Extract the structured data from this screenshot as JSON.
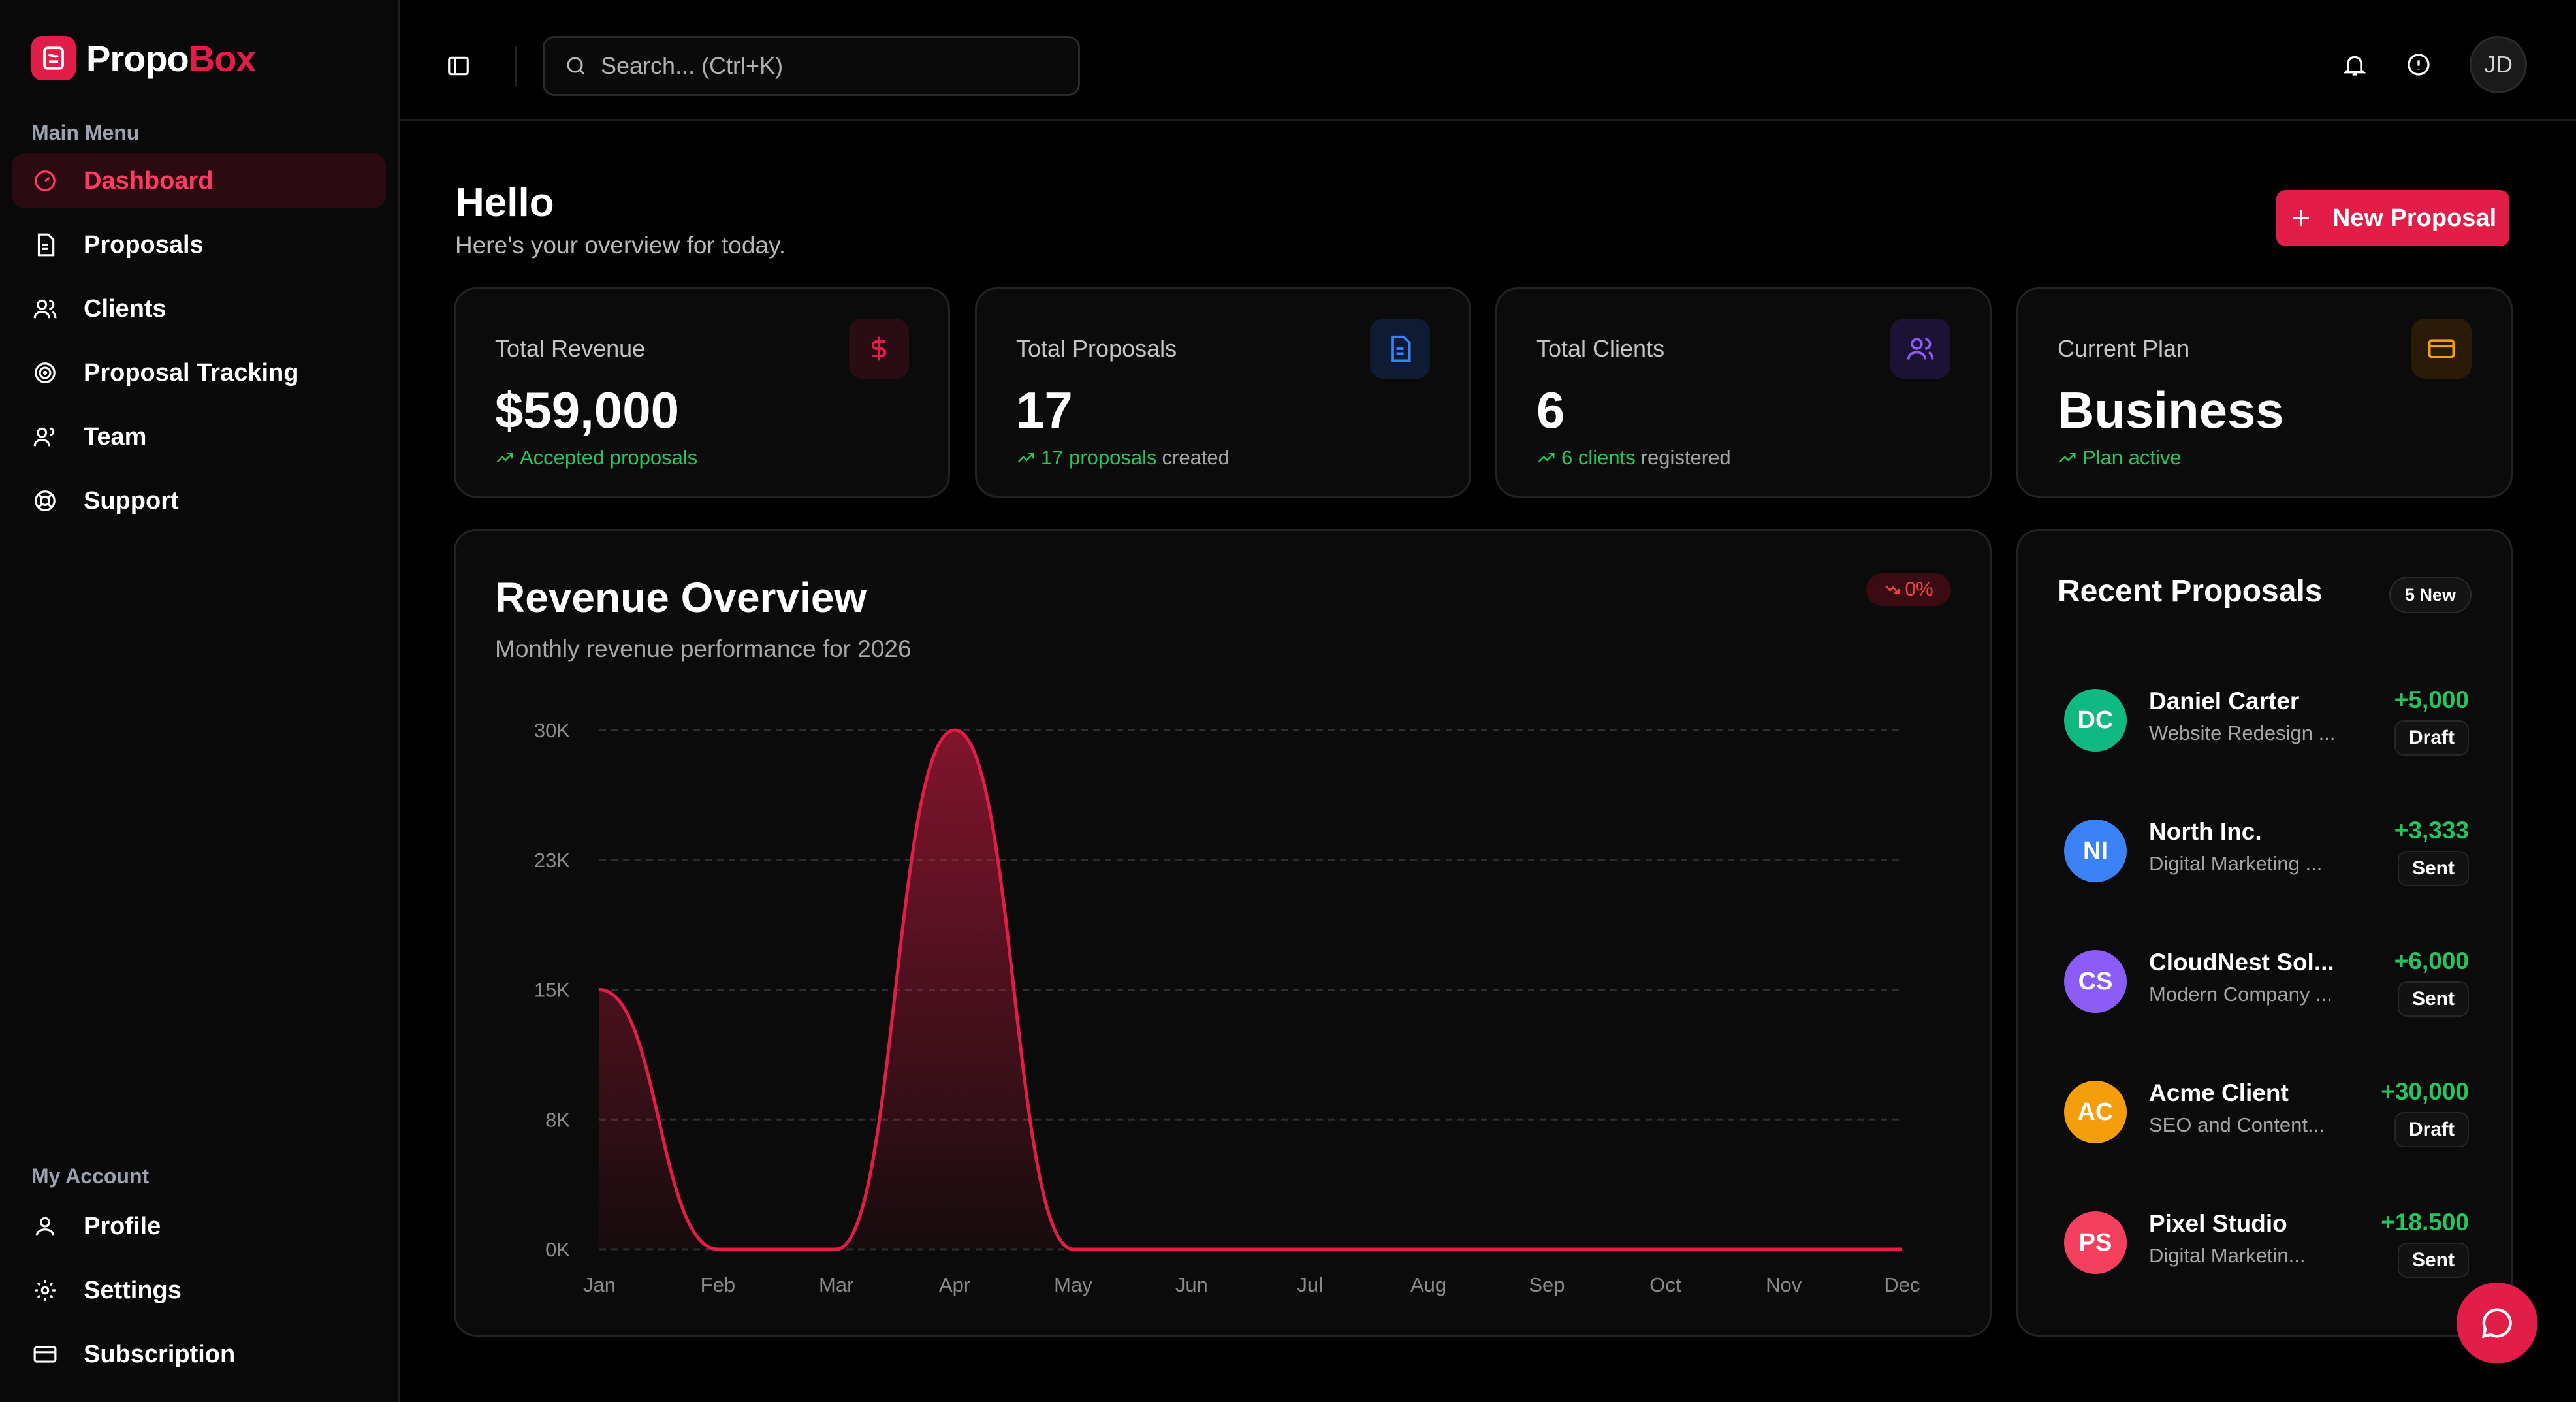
{
  "brand": {
    "name_part1": "Propo",
    "name_part2": "Box"
  },
  "sidebar": {
    "main_menu_label": "Main Menu",
    "items": [
      {
        "label": "Dashboard",
        "icon": "gauge-icon",
        "active": true
      },
      {
        "label": "Proposals",
        "icon": "document-icon"
      },
      {
        "label": "Clients",
        "icon": "users-icon"
      },
      {
        "label": "Proposal Tracking",
        "icon": "target-icon"
      },
      {
        "label": "Team",
        "icon": "team-icon"
      },
      {
        "label": "Support",
        "icon": "lifebuoy-icon"
      }
    ],
    "account_label": "My Account",
    "account_items": [
      {
        "label": "Profile",
        "icon": "user-icon"
      },
      {
        "label": "Settings",
        "icon": "gear-icon"
      },
      {
        "label": "Subscription",
        "icon": "credit-card-icon"
      }
    ]
  },
  "topbar": {
    "search_placeholder": "Search... (Ctrl+K)",
    "avatar_initials": "JD"
  },
  "header": {
    "title": "Hello",
    "subtitle": "Here's your overview for today.",
    "new_button": "New Proposal"
  },
  "stats": [
    {
      "label": "Total Revenue",
      "value": "$59,000",
      "sub_highlight": "Accepted proposals",
      "sub_rest": "",
      "icon": "dollar-icon",
      "accent": "#e11d48"
    },
    {
      "label": "Total Proposals",
      "value": "17",
      "sub_highlight": "17 proposals",
      "sub_rest": "created",
      "icon": "document-icon",
      "accent": "#3b82f6"
    },
    {
      "label": "Total Clients",
      "value": "6",
      "sub_highlight": "6 clients",
      "sub_rest": "registered",
      "icon": "users-icon",
      "accent": "#8b5cf6"
    },
    {
      "label": "Current Plan",
      "value": "Business",
      "sub_highlight": "Plan active",
      "sub_rest": "",
      "icon": "credit-card-icon",
      "accent": "#f59e0b"
    }
  ],
  "revenue": {
    "title": "Revenue Overview",
    "subtitle": "Monthly revenue performance for 2026",
    "trend": "0%"
  },
  "chart_data": {
    "type": "area",
    "categories": [
      "Jan",
      "Feb",
      "Mar",
      "Apr",
      "May",
      "Jun",
      "Jul",
      "Aug",
      "Sep",
      "Oct",
      "Nov",
      "Dec"
    ],
    "series": [
      {
        "values": [
          15000,
          0,
          0,
          30000,
          0,
          0,
          0,
          0,
          0,
          0,
          0,
          0
        ]
      }
    ],
    "ytick_labels": [
      "0K",
      "8K",
      "15K",
      "23K",
      "30K"
    ],
    "ytick_values": [
      0,
      7500,
      15000,
      22500,
      30000
    ],
    "ylim": [
      0,
      30000
    ],
    "grid": true,
    "color": "#e11d48"
  },
  "recent": {
    "title": "Recent Proposals",
    "badge": "5 New",
    "items": [
      {
        "initials": "DC",
        "name": "Daniel Carter",
        "desc": "Website Redesign ...",
        "amount": "+5,000",
        "status": "Draft",
        "color": "#10b981"
      },
      {
        "initials": "NI",
        "name": "North Inc.",
        "desc": "Digital Marketing ...",
        "amount": "+3,333",
        "status": "Sent",
        "color": "#3b82f6"
      },
      {
        "initials": "CS",
        "name": "CloudNest Sol...",
        "desc": "Modern Company ...",
        "amount": "+6,000",
        "status": "Sent",
        "color": "#8b5cf6"
      },
      {
        "initials": "AC",
        "name": "Acme Client",
        "desc": "SEO and Content...",
        "amount": "+30,000",
        "status": "Draft",
        "color": "#f59e0b"
      },
      {
        "initials": "PS",
        "name": "Pixel Studio",
        "desc": "Digital Marketin...",
        "amount": "+18.500",
        "status": "Sent",
        "color": "#f43f5e"
      }
    ]
  }
}
